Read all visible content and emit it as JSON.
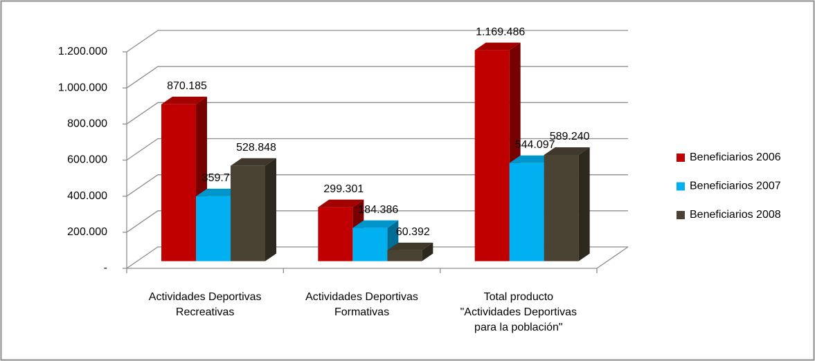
{
  "chart_data": {
    "type": "bar3d",
    "categories": [
      [
        "Actividades Deportivas",
        "Recreativas"
      ],
      [
        "Actividades Deportivas",
        "Formativas"
      ],
      [
        "Total producto",
        "\"Actividades Deportivas",
        "para la población\""
      ]
    ],
    "series": [
      {
        "name": "Beneficiarios 2006",
        "color": "#c00000",
        "values": [
          870185,
          299301,
          1169486
        ],
        "value_labels": [
          "870.185",
          "299.301",
          "1.169.486"
        ]
      },
      {
        "name": "Beneficiarios 2007",
        "color": "#00b0f0",
        "values": [
          359711,
          184386,
          544097
        ],
        "value_labels": [
          "359.711",
          "184.386",
          "544.097"
        ]
      },
      {
        "name": "Beneficiarios 2008",
        "color": "#4a4232",
        "values": [
          528848,
          60392,
          589240
        ],
        "value_labels": [
          "528.848",
          "60.392",
          "589.240"
        ]
      }
    ],
    "ylim": [
      0,
      1200000
    ],
    "yticks": [
      {
        "value": 0,
        "label": "-"
      },
      {
        "value": 200000,
        "label": "200.000"
      },
      {
        "value": 400000,
        "label": "400.000"
      },
      {
        "value": 600000,
        "label": "600.000"
      },
      {
        "value": 800000,
        "label": "800.000"
      },
      {
        "value": 1000000,
        "label": "1.000.000"
      },
      {
        "value": 1200000,
        "label": "1.200.000"
      }
    ],
    "grid": true,
    "legend": "right"
  }
}
